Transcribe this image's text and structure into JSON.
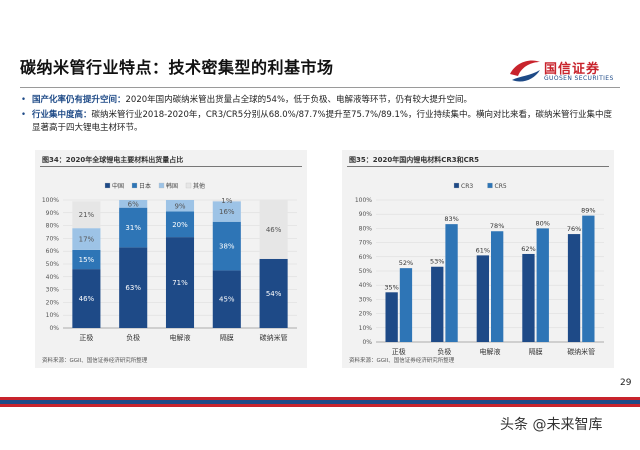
{
  "header": {
    "title": "碳纳米管行业特点：技术密集型的利基市场",
    "logo_text": "国信证券",
    "logo_en": "GUOSEN SECURITIES",
    "brand_red": "#c8232c",
    "brand_blue": "#1e4a87"
  },
  "bullets": [
    {
      "lead": "国产化率仍有提升空间：",
      "text": "2020年国内碳纳米管出货量占全球的54%，低于负极、电解液等环节，仍有较大提升空间。"
    },
    {
      "lead": "行业集中度高：",
      "text": "碳纳米管行业2018-2020年，CR3/CR5分别从68.0%/87.7%提升至75.7%/89.1%，行业持续集中。横向对比来看，碳纳米管行业集中度显著高于四大锂电主材环节。"
    }
  ],
  "chart_data": [
    {
      "type": "bar",
      "stacked": true,
      "title": "图34：2020年全球锂电主要材料出货量占比",
      "categories": [
        "正极",
        "负极",
        "电解液",
        "隔膜",
        "碳纳米管"
      ],
      "series": [
        {
          "name": "中国",
          "color": "#1e4a87",
          "values": [
            46,
            63,
            71,
            45,
            54
          ],
          "labels": [
            "46%",
            "63%",
            "71%",
            "45%",
            "54%"
          ]
        },
        {
          "name": "日本",
          "color": "#2e75b6",
          "values": [
            15,
            31,
            20,
            38,
            0
          ],
          "labels": [
            "15%",
            "31%",
            "20%",
            "38%",
            ""
          ]
        },
        {
          "name": "韩国",
          "color": "#9dc3e6",
          "values": [
            17,
            6,
            9,
            16,
            0
          ],
          "labels": [
            "17%",
            "6%",
            "9%",
            "16%",
            ""
          ]
        },
        {
          "name": "其他",
          "color": "#e6e6e6",
          "values": [
            21,
            0,
            0,
            1,
            46
          ],
          "labels": [
            "21%",
            "",
            "",
            "1%",
            "46%"
          ]
        }
      ],
      "ylim": [
        0,
        100
      ],
      "yticks": [
        "0%",
        "10%",
        "20%",
        "30%",
        "40%",
        "50%",
        "60%",
        "70%",
        "80%",
        "90%",
        "100%"
      ],
      "legend": "top",
      "source": "资料来源：GGII、国信证券经济研究所整理"
    },
    {
      "type": "bar",
      "title": "图35：2020年国内锂电材料CR3和CR5",
      "categories": [
        "正极",
        "负极",
        "电解液",
        "隔膜",
        "碳纳米管"
      ],
      "series": [
        {
          "name": "CR3",
          "color": "#1e4a87",
          "values": [
            35,
            53,
            61,
            62,
            76
          ],
          "labels": [
            "35%",
            "53%",
            "61%",
            "62%",
            "76%"
          ]
        },
        {
          "name": "CR5",
          "color": "#2e75b6",
          "values": [
            52,
            83,
            78,
            80,
            89
          ],
          "labels": [
            "52%",
            "83%",
            "78%",
            "80%",
            "89%"
          ]
        }
      ],
      "ylim": [
        0,
        100
      ],
      "yticks": [
        "0%",
        "10%",
        "20%",
        "30%",
        "40%",
        "50%",
        "60%",
        "70%",
        "80%",
        "90%",
        "100%"
      ],
      "legend": "top",
      "source": "资料来源：GGII、国信证券经济研究所整理"
    }
  ],
  "footer": {
    "page_number": "29",
    "watermark": "头条 @未来智库"
  }
}
